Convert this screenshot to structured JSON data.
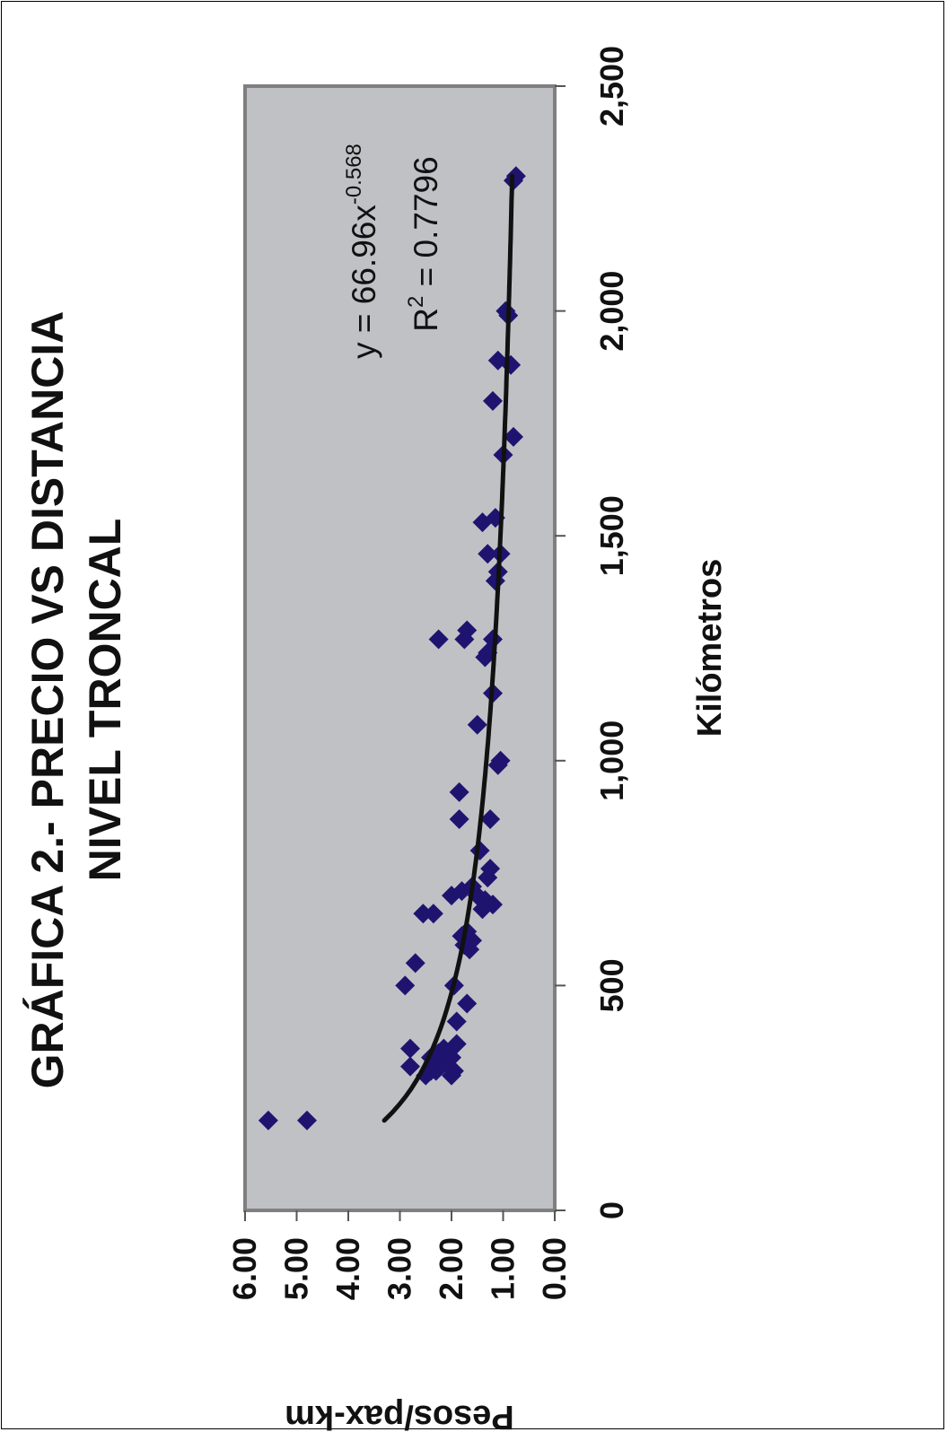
{
  "chart_data": {
    "type": "scatter",
    "title_line1": "GRÁFICA 2.- PRECIO VS DISTANCIA",
    "title_line2": "NIVEL TRONCAL",
    "xlabel": "Kilómetros",
    "ylabel": "Pesos/pax-km",
    "xlim": [
      0,
      2500
    ],
    "ylim": [
      0,
      6
    ],
    "x_ticks": [
      0,
      500,
      1000,
      1500,
      2000,
      2500
    ],
    "x_tick_labels": [
      "0",
      "500",
      "1,000",
      "1,500",
      "2,000",
      "2,500"
    ],
    "y_ticks": [
      0,
      1,
      2,
      3,
      4,
      5,
      6
    ],
    "y_tick_labels": [
      "0.00",
      "1.00",
      "2.00",
      "3.00",
      "4.00",
      "5.00",
      "6.00"
    ],
    "grid": false,
    "legend": "none",
    "rotation": "rotated 90° counter-clockwise",
    "colors": {
      "plot_background": "#c0c1c5",
      "plot_border": "#7f7f7f",
      "marker": "#1e1470",
      "trendline": "#111111"
    },
    "trendline": {
      "type": "power",
      "a": 66.96,
      "b": -0.568,
      "x_range": [
        200,
        2300
      ],
      "equation_main": "y = 66.96x",
      "equation_exp": "-0.568",
      "r2_prefix": "R",
      "r2_sup": "2",
      "r2_suffix": " = 0.7796"
    },
    "series": [
      {
        "marker": "diamond",
        "points": [
          [
            200,
            5.55
          ],
          [
            200,
            4.8
          ],
          [
            320,
            2.8
          ],
          [
            360,
            2.8
          ],
          [
            300,
            2.5
          ],
          [
            310,
            2.4
          ],
          [
            320,
            2.3
          ],
          [
            330,
            2.2
          ],
          [
            340,
            2.4
          ],
          [
            350,
            2.1
          ],
          [
            300,
            2.0
          ],
          [
            310,
            1.95
          ],
          [
            330,
            2.1
          ],
          [
            340,
            2.0
          ],
          [
            360,
            2.15
          ],
          [
            370,
            1.9
          ],
          [
            310,
            2.3
          ],
          [
            350,
            2.25
          ],
          [
            420,
            1.9
          ],
          [
            460,
            1.7
          ],
          [
            500,
            2.9
          ],
          [
            500,
            1.95
          ],
          [
            550,
            2.7
          ],
          [
            580,
            1.65
          ],
          [
            590,
            1.75
          ],
          [
            600,
            1.6
          ],
          [
            610,
            1.8
          ],
          [
            620,
            1.7
          ],
          [
            660,
            2.55
          ],
          [
            660,
            2.35
          ],
          [
            670,
            1.4
          ],
          [
            680,
            1.2
          ],
          [
            690,
            1.35
          ],
          [
            700,
            1.5
          ],
          [
            700,
            2.0
          ],
          [
            710,
            1.8
          ],
          [
            720,
            1.6
          ],
          [
            740,
            1.3
          ],
          [
            760,
            1.25
          ],
          [
            800,
            1.45
          ],
          [
            870,
            1.85
          ],
          [
            870,
            1.25
          ],
          [
            930,
            1.85
          ],
          [
            990,
            1.1
          ],
          [
            1000,
            1.05
          ],
          [
            1080,
            1.5
          ],
          [
            1150,
            1.2
          ],
          [
            1230,
            1.35
          ],
          [
            1240,
            1.3
          ],
          [
            1270,
            1.75
          ],
          [
            1270,
            1.2
          ],
          [
            1270,
            2.25
          ],
          [
            1290,
            1.7
          ],
          [
            1400,
            1.15
          ],
          [
            1420,
            1.1
          ],
          [
            1460,
            1.3
          ],
          [
            1460,
            1.05
          ],
          [
            1530,
            1.4
          ],
          [
            1540,
            1.15
          ],
          [
            1680,
            1.0
          ],
          [
            1720,
            0.8
          ],
          [
            1800,
            1.2
          ],
          [
            1880,
            0.85
          ],
          [
            1890,
            1.1
          ],
          [
            1990,
            0.9
          ],
          [
            2000,
            0.95
          ],
          [
            2290,
            0.8
          ],
          [
            2300,
            0.75
          ]
        ]
      }
    ]
  }
}
